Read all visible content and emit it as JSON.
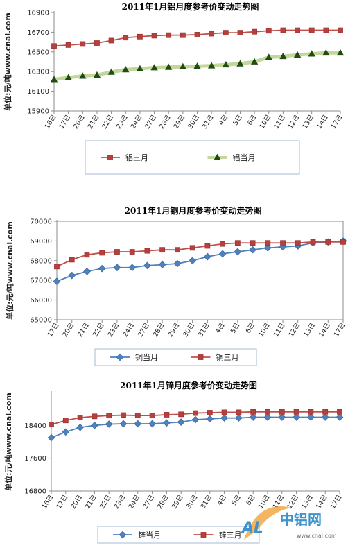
{
  "colors": {
    "red_series": "#c0504d",
    "red_marker": "#b8403c",
    "green_marker": "#1f4e10",
    "green_glow": "#c3d69b",
    "blue_series": "#4f81bd",
    "axis": "#8b8b8b",
    "grid": "#d9d9d9",
    "legend_border": "#a6b9d6"
  },
  "watermark": {
    "logo_text": "中铝网",
    "al_letters": "AL",
    "url": "www.cnal.com"
  },
  "chart_data": [
    {
      "id": "aluminum",
      "type": "line",
      "title": "2011年1月铝月度参考价变动走势图",
      "ylabel": "单位:元/吨www.cnal.com",
      "ylim": [
        15900,
        16900
      ],
      "yticks": [
        15900,
        16100,
        16300,
        16500,
        16700,
        16900
      ],
      "categories": [
        "16日",
        "17日",
        "20日",
        "21日",
        "22日",
        "23日",
        "24日",
        "27日",
        "28日",
        "29日",
        "30日",
        "31日",
        "4日",
        "5日",
        "6日",
        "10日",
        "11日",
        "12日",
        "13日",
        "14日",
        "17日"
      ],
      "series": [
        {
          "name": "铝三月",
          "color": "#c0504d",
          "marker": "square",
          "values": [
            16560,
            16570,
            16580,
            16590,
            16615,
            16645,
            16655,
            16665,
            16670,
            16670,
            16675,
            16685,
            16695,
            16695,
            16705,
            16715,
            16720,
            16720,
            16720,
            16720,
            16720
          ]
        },
        {
          "name": "铝当月",
          "color": "#c3d69b",
          "marker": "triangle",
          "values": [
            16220,
            16240,
            16255,
            16265,
            16295,
            16320,
            16330,
            16340,
            16345,
            16350,
            16355,
            16360,
            16370,
            16380,
            16400,
            16445,
            16455,
            16470,
            16480,
            16490,
            16490
          ]
        }
      ],
      "legend_position": "bottom"
    },
    {
      "id": "copper",
      "type": "line",
      "title": "2011年1月铜月度参考价变动走势图",
      "ylabel": "单位:元/吨www.cnal.com",
      "ylim": [
        65000,
        70000
      ],
      "yticks": [
        65000,
        66000,
        67000,
        68000,
        69000,
        70000
      ],
      "categories": [
        "17日",
        "20日",
        "21日",
        "22日",
        "23日",
        "24日",
        "27日",
        "28日",
        "29日",
        "30日",
        "31日",
        "4日",
        "5日",
        "6日",
        "10日",
        "11日",
        "12日",
        "13日",
        "14日",
        "17日"
      ],
      "series": [
        {
          "name": "铜当月",
          "color": "#4f81bd",
          "marker": "diamond",
          "values": [
            66950,
            67250,
            67450,
            67600,
            67650,
            67650,
            67750,
            67800,
            67850,
            68000,
            68200,
            68350,
            68450,
            68550,
            68650,
            68700,
            68750,
            68900,
            68950,
            69000
          ]
        },
        {
          "name": "铜三月",
          "color": "#c0504d",
          "marker": "square",
          "values": [
            67700,
            68050,
            68300,
            68400,
            68450,
            68450,
            68500,
            68550,
            68550,
            68650,
            68750,
            68850,
            68900,
            68900,
            68900,
            68900,
            68900,
            68950,
            68950,
            68950
          ]
        }
      ],
      "legend_position": "bottom"
    },
    {
      "id": "zinc",
      "type": "line",
      "title": "2011年1月锌月度参考价变动走势图",
      "ylabel": "单位:元/吨www.cnal.com",
      "ylim": [
        16800,
        19200
      ],
      "yticks": [
        16800,
        17600,
        18400
      ],
      "categories": [
        "16日",
        "17日",
        "20日",
        "21日",
        "22日",
        "23日",
        "24日",
        "27日",
        "28日",
        "29日",
        "30日",
        "31日",
        "4日",
        "5日",
        "6日",
        "10日",
        "11日",
        "12日",
        "13日",
        "14日",
        "17日"
      ],
      "series": [
        {
          "name": "锌当月",
          "color": "#4f81bd",
          "marker": "diamond",
          "values": [
            18100,
            18240,
            18350,
            18400,
            18430,
            18440,
            18440,
            18440,
            18460,
            18480,
            18540,
            18560,
            18580,
            18580,
            18600,
            18600,
            18600,
            18600,
            18600,
            18600,
            18600
          ]
        },
        {
          "name": "锌三月",
          "color": "#c0504d",
          "marker": "square",
          "values": [
            18420,
            18520,
            18590,
            18620,
            18640,
            18650,
            18640,
            18640,
            18660,
            18670,
            18700,
            18710,
            18720,
            18720,
            18730,
            18730,
            18730,
            18730,
            18730,
            18730,
            18730
          ]
        }
      ],
      "legend_position": "bottom"
    }
  ]
}
